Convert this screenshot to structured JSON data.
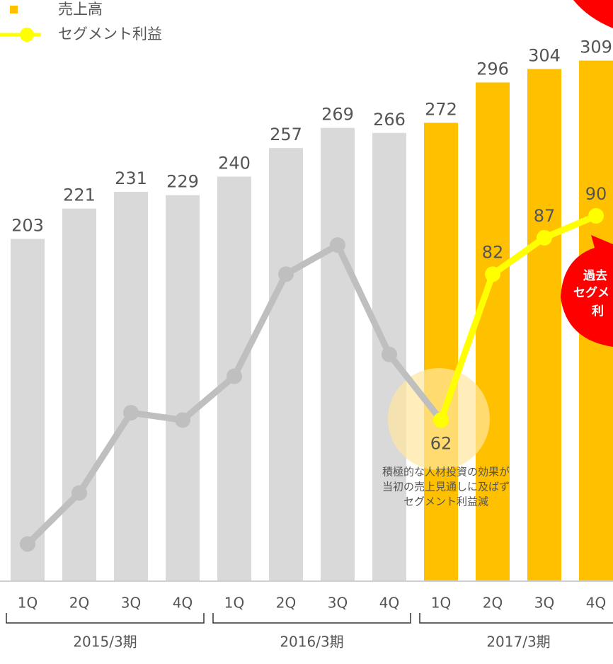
{
  "chart_data": {
    "type": "combo",
    "categories": [
      "1Q",
      "2Q",
      "3Q",
      "4Q",
      "1Q",
      "2Q",
      "3Q",
      "4Q",
      "1Q",
      "2Q",
      "3Q",
      "4Q"
    ],
    "groups": [
      {
        "label": "2015/3期",
        "from": 0,
        "to": 3
      },
      {
        "label": "2016/3期",
        "from": 4,
        "to": 7
      },
      {
        "label": "2017/3期",
        "from": 8,
        "to": 11
      }
    ],
    "series": [
      {
        "name": "売上高",
        "type": "bar",
        "color": "#ffc000",
        "colors": [
          "#d9d9d9",
          "#d9d9d9",
          "#d9d9d9",
          "#d9d9d9",
          "#d9d9d9",
          "#d9d9d9",
          "#d9d9d9",
          "#d9d9d9",
          "#ffc000",
          "#ffc000",
          "#ffc000",
          "#ffc000"
        ],
        "values": [
          203,
          221,
          231,
          229,
          240,
          257,
          269,
          266,
          272,
          296,
          304,
          309
        ]
      },
      {
        "name": "セグメント利益",
        "type": "line",
        "axis": "y2",
        "color": "#ffff00",
        "colors": [
          "#bfbfbf",
          "#bfbfbf",
          "#bfbfbf",
          "#bfbfbf",
          "#bfbfbf",
          "#bfbfbf",
          "#bfbfbf",
          "#bfbfbf",
          "#ffff00",
          "#ffff00",
          "#ffff00",
          "#ffff00"
        ],
        "values": [
          45,
          52,
          63,
          62,
          68,
          82,
          86,
          71,
          62,
          82,
          87,
          90
        ],
        "value_labels": [
          null,
          null,
          null,
          null,
          null,
          null,
          null,
          null,
          "62",
          "82",
          "87",
          "90"
        ]
      }
    ],
    "ylim": [
      0,
      345
    ],
    "y2lim": [
      40,
      119.6
    ],
    "annotations": [
      {
        "text": [
          "積極的な人材投資の効果が",
          "当初の売上見通しに及ばず",
          "セグメント利益減"
        ]
      },
      {
        "text": [
          "過去",
          "セグメ",
          "利"
        ]
      }
    ]
  }
}
